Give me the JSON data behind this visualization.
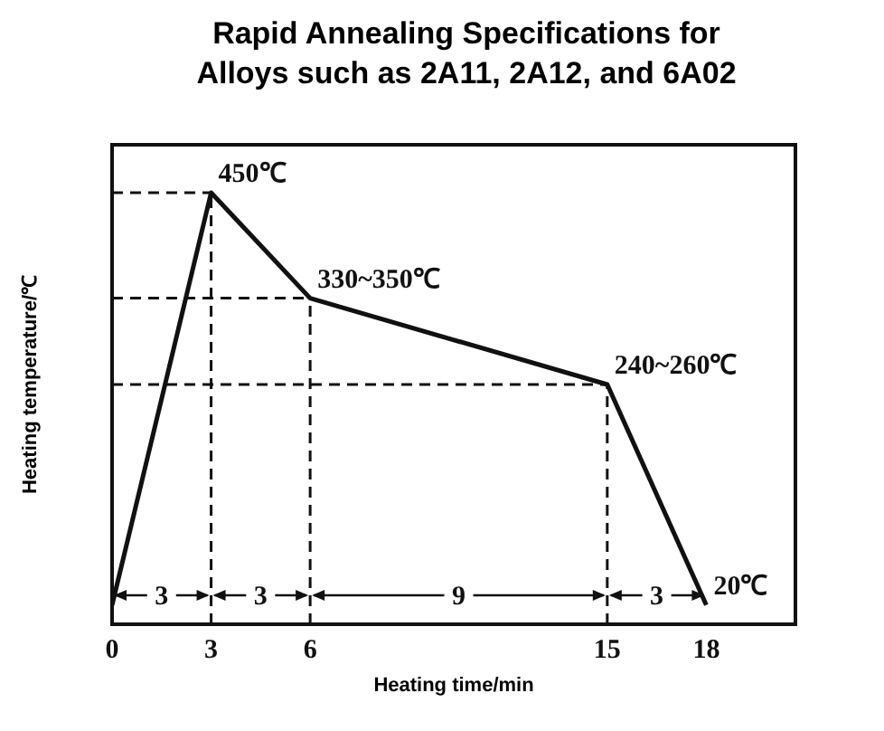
{
  "chart_data": {
    "type": "line",
    "title": "Rapid Annealing Specifications for Alloys such as 2A11, 2A12, and 6A02",
    "xlabel": "Heating time/min",
    "ylabel": "Heating temperature/℃",
    "x": [
      0,
      3,
      6,
      15,
      18
    ],
    "series": [
      {
        "color": "#111111",
        "values": [
          20,
          450,
          340,
          250,
          20
        ],
        "value_labels": [
          null,
          "450℃",
          null,
          null,
          "20℃"
        ]
      }
    ],
    "xlim": [
      0,
      20.7
    ],
    "xticks": [
      0,
      3,
      6,
      15,
      18
    ],
    "ref_lines": [
      {
        "axis": "y",
        "value": 450,
        "line_style": "dashed",
        "color": "#111111"
      },
      {
        "axis": "y",
        "value": 340,
        "line_style": "dashed",
        "color": "#111111"
      },
      {
        "axis": "y",
        "value": 250,
        "line_style": "dashed",
        "color": "#111111"
      },
      {
        "axis": "x",
        "value": 3,
        "line_style": "dashed",
        "color": "#111111"
      },
      {
        "axis": "x",
        "value": 6,
        "line_style": "dashed",
        "color": "#111111"
      },
      {
        "axis": "x",
        "value": 15,
        "line_style": "dashed",
        "color": "#111111"
      }
    ],
    "annotations": [
      {
        "text": "330~350℃",
        "x": 6,
        "y": 340
      },
      {
        "text": "240~260℃",
        "x": 15,
        "y": 250
      },
      "3",
      "3",
      "9",
      "3"
    ],
    "marker": "none",
    "line_style": "solid"
  }
}
